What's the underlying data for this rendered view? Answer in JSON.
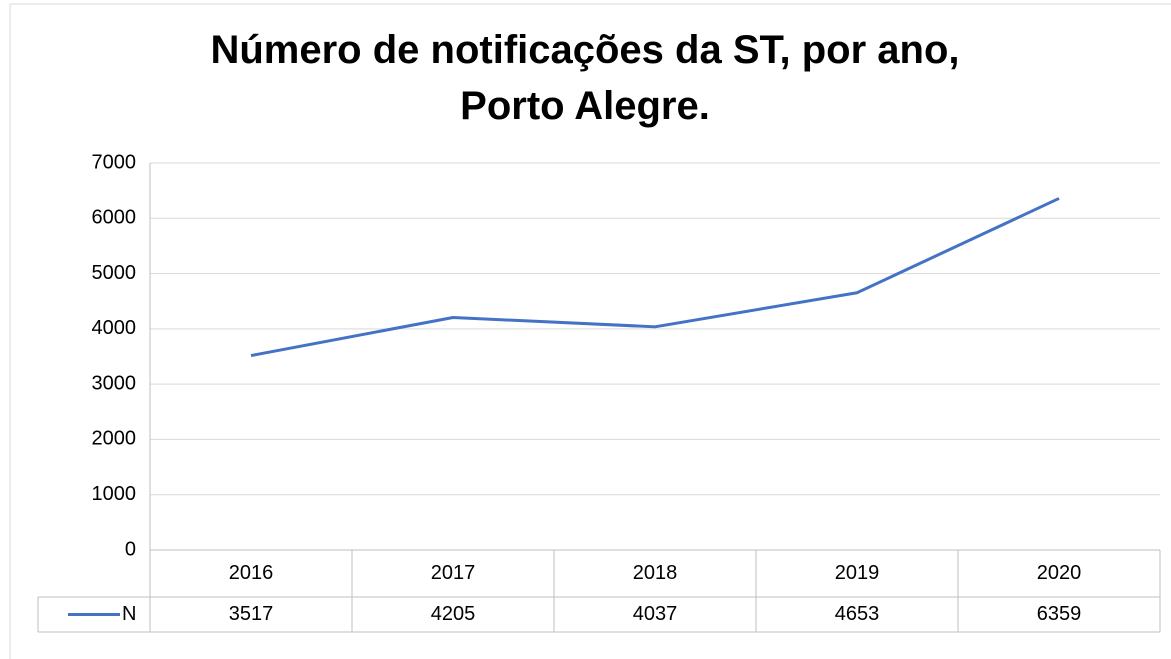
{
  "chart_data": {
    "type": "line",
    "title": "Número de notificações da ST, por ano, Porto Alegre.",
    "categories": [
      "2016",
      "2017",
      "2018",
      "2019",
      "2020"
    ],
    "series": [
      {
        "name": "N",
        "color": "#4472c4",
        "values": [
          3517,
          4205,
          4037,
          4653,
          6359
        ]
      }
    ],
    "ylim": [
      0,
      7000
    ],
    "yticks": [
      0,
      1000,
      2000,
      3000,
      4000,
      5000,
      6000,
      7000
    ],
    "grid": true
  }
}
